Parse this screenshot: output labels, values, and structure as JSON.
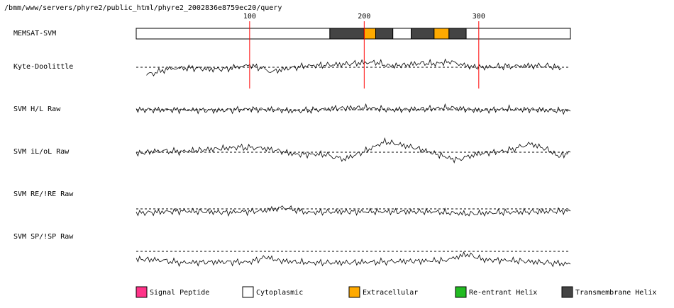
{
  "page": {
    "path_label": "/bmm/www/servers/phyre2/public_html/phyre2_2002836e8759ec20/query"
  },
  "chart_data": {
    "type": "line",
    "x_ticks": [
      "100",
      "200",
      "300"
    ],
    "x_tick_values": [
      100,
      200,
      300
    ],
    "sequence_length": 380,
    "tracks": [
      {
        "name": "MEMSAT-SVM",
        "kind": "topology"
      },
      {
        "name": "Kyte-Doolittle",
        "kind": "profile"
      },
      {
        "name": "SVM H/L Raw",
        "kind": "profile"
      },
      {
        "name": "SVM iL/oL Raw",
        "kind": "profile"
      },
      {
        "name": "SVM RE/!RE Raw",
        "kind": "profile"
      },
      {
        "name": "SVM SP/!SP Raw",
        "kind": "profile"
      }
    ],
    "topology": [
      {
        "start": 1,
        "end": 170,
        "type": "cytoplasmic"
      },
      {
        "start": 170,
        "end": 200,
        "type": "transmembrane"
      },
      {
        "start": 200,
        "end": 210,
        "type": "extracellular"
      },
      {
        "start": 210,
        "end": 225,
        "type": "transmembrane"
      },
      {
        "start": 225,
        "end": 241,
        "type": "cytoplasmic"
      },
      {
        "start": 241,
        "end": 261,
        "type": "transmembrane"
      },
      {
        "start": 261,
        "end": 274,
        "type": "extracellular"
      },
      {
        "start": 274,
        "end": 289,
        "type": "transmembrane"
      },
      {
        "start": 289,
        "end": 380,
        "type": "cytoplasmic"
      }
    ],
    "profiles": {
      "kyte_doolittle": [
        [
          10,
          -1.1
        ],
        [
          30,
          -0.2
        ],
        [
          50,
          -0.1
        ],
        [
          65,
          -0.3
        ],
        [
          80,
          -0.2
        ],
        [
          100,
          0.3
        ],
        [
          112,
          -0.2
        ],
        [
          120,
          -0.6
        ],
        [
          135,
          -0.1
        ],
        [
          150,
          0.2
        ],
        [
          165,
          0.3
        ],
        [
          180,
          0.4
        ],
        [
          195,
          0.6
        ],
        [
          210,
          0.7
        ],
        [
          222,
          0.2
        ],
        [
          235,
          0.3
        ],
        [
          250,
          0.6
        ],
        [
          262,
          0.5
        ],
        [
          275,
          0.8
        ],
        [
          292,
          0.1
        ],
        [
          305,
          0.0
        ],
        [
          320,
          0.1
        ],
        [
          340,
          0.2
        ],
        [
          360,
          0.2
        ],
        [
          372,
          -0.1
        ]
      ],
      "svm_h_l": [
        [
          1,
          0.0
        ],
        [
          40,
          0.0
        ],
        [
          70,
          -0.1
        ],
        [
          100,
          0.1
        ],
        [
          125,
          0.0
        ],
        [
          140,
          -0.2
        ],
        [
          175,
          0.2
        ],
        [
          200,
          0.3
        ],
        [
          225,
          0.0
        ],
        [
          250,
          0.1
        ],
        [
          275,
          0.3
        ],
        [
          300,
          -0.1
        ],
        [
          325,
          0.1
        ],
        [
          350,
          0.0
        ],
        [
          380,
          -0.2
        ]
      ],
      "svm_il_ol": [
        [
          1,
          -0.2
        ],
        [
          20,
          0.2
        ],
        [
          40,
          0.1
        ],
        [
          65,
          0.4
        ],
        [
          90,
          0.7
        ],
        [
          110,
          0.6
        ],
        [
          125,
          0.2
        ],
        [
          140,
          -0.3
        ],
        [
          165,
          -0.3
        ],
        [
          182,
          -1.0
        ],
        [
          200,
          0.1
        ],
        [
          218,
          1.5
        ],
        [
          245,
          0.6
        ],
        [
          270,
          -0.6
        ],
        [
          280,
          -1.1
        ],
        [
          300,
          -0.2
        ],
        [
          325,
          0.2
        ],
        [
          345,
          1.2
        ],
        [
          360,
          0.4
        ],
        [
          370,
          -0.6
        ],
        [
          380,
          0.0
        ]
      ],
      "svm_re_ire": [
        [
          1,
          -0.6
        ],
        [
          40,
          -0.3
        ],
        [
          80,
          -0.5
        ],
        [
          110,
          -0.3
        ],
        [
          130,
          0.2
        ],
        [
          150,
          -0.5
        ],
        [
          180,
          -0.4
        ],
        [
          220,
          -0.4
        ],
        [
          260,
          -0.4
        ],
        [
          290,
          -0.7
        ],
        [
          320,
          -0.5
        ],
        [
          350,
          -0.4
        ],
        [
          380,
          -0.3
        ]
      ],
      "svm_sp_isp": [
        [
          1,
          -1.1
        ],
        [
          20,
          -1.2
        ],
        [
          40,
          -1.6
        ],
        [
          70,
          -1.5
        ],
        [
          100,
          -1.5
        ],
        [
          115,
          -0.8
        ],
        [
          125,
          -1.3
        ],
        [
          150,
          -1.6
        ],
        [
          180,
          -1.6
        ],
        [
          210,
          -1.5
        ],
        [
          230,
          -1.4
        ],
        [
          270,
          -1.3
        ],
        [
          290,
          -0.4
        ],
        [
          305,
          -1.2
        ],
        [
          330,
          -1.3
        ],
        [
          360,
          -1.6
        ],
        [
          380,
          -1.8
        ]
      ]
    },
    "legend_position": "bottom",
    "legend": [
      {
        "label": "Signal Peptide",
        "color": "#ff3388"
      },
      {
        "label": "Cytoplasmic",
        "color": "#ffffff"
      },
      {
        "label": "Extracellular",
        "color": "#ffaa00"
      },
      {
        "label": "Re-entrant Helix",
        "color": "#22bb22"
      },
      {
        "label": "Transmembrane Helix",
        "color": "#444444"
      }
    ],
    "colors": {
      "cytoplasmic": "#ffffff",
      "transmembrane": "#444444",
      "extracellular": "#ffaa00",
      "marker_line": "#ff0000"
    }
  }
}
